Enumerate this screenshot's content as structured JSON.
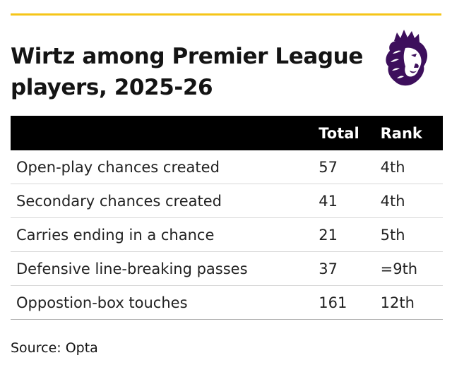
{
  "title": "Wirtz among Premier League players, 2025-26",
  "logo": {
    "icon": "premier-league-lion-icon",
    "color": "#3d0f5c"
  },
  "accent_color": "#f5c518",
  "table": {
    "headers": {
      "stat": "",
      "total": "Total",
      "rank": "Rank"
    },
    "rows": [
      {
        "stat": "Open-play chances created",
        "total": "57",
        "rank": "4th"
      },
      {
        "stat": "Secondary chances created",
        "total": "41",
        "rank": "4th"
      },
      {
        "stat": "Carries ending in a chance",
        "total": "21",
        "rank": "5th"
      },
      {
        "stat": "Defensive line-breaking passes",
        "total": "37",
        "rank": "=9th"
      },
      {
        "stat": "Oppostion-box touches",
        "total": "161",
        "rank": "12th"
      }
    ]
  },
  "source": "Source: Opta"
}
